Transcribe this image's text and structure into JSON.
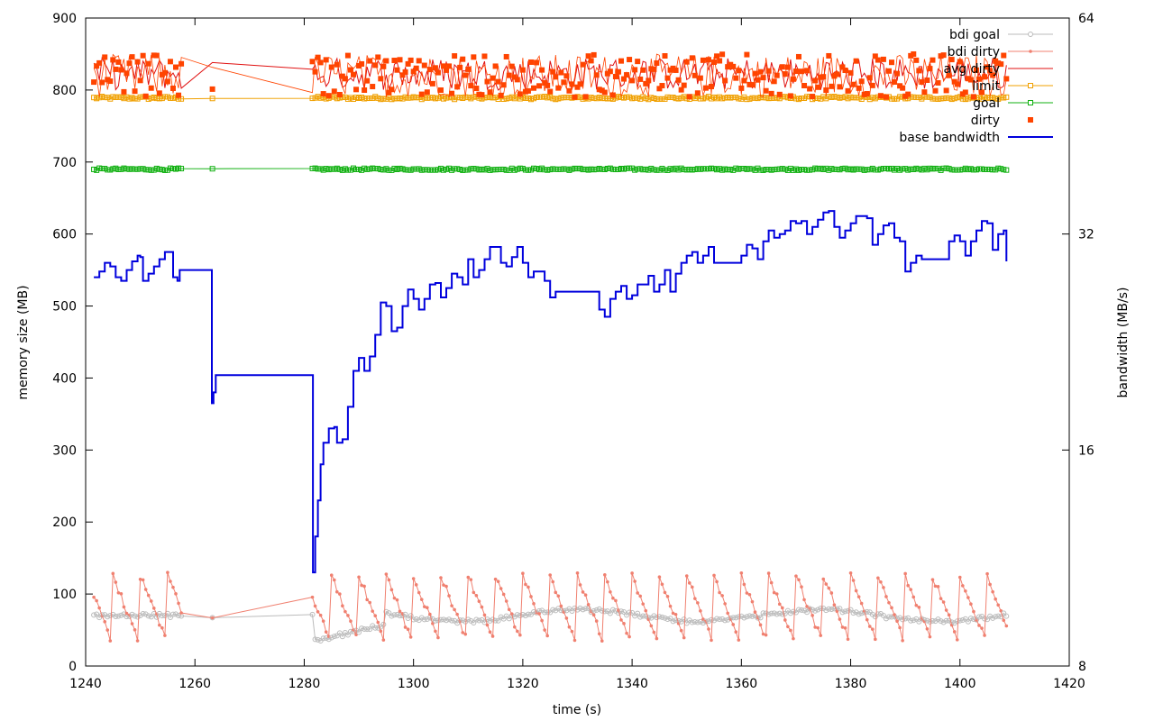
{
  "chart_data": {
    "type": "line",
    "xlabel": "time (s)",
    "ylabel_left": "memory size (MB)",
    "ylabel_right": "bandwidth (MB/s)",
    "xlim": [
      1240,
      1420
    ],
    "ylim_left": [
      0,
      900
    ],
    "ylim_right_log2": [
      8,
      64
    ],
    "x_ticks": [
      "1240",
      "1260",
      "1280",
      "1300",
      "1320",
      "1340",
      "1360",
      "1380",
      "1400",
      "1420"
    ],
    "y_ticks_left": [
      "0",
      "100",
      "200",
      "300",
      "400",
      "500",
      "600",
      "700",
      "800",
      "900"
    ],
    "y_ticks_right": [
      "8",
      "16",
      "32",
      "64"
    ],
    "grid": false,
    "legend_position": "top-right",
    "legend": [
      {
        "name": "bdi goal",
        "color": "#bbbbbb",
        "marker": "circle"
      },
      {
        "name": "bdi dirty",
        "color": "#f08070",
        "marker": "dot"
      },
      {
        "name": "avg dirty",
        "color": "#e01010",
        "marker": "none"
      },
      {
        "name": "limit",
        "color": "#f0a000",
        "marker": "square"
      },
      {
        "name": "goal",
        "color": "#10b010",
        "marker": "square"
      },
      {
        "name": "dirty",
        "color": "#ff4400",
        "marker": "filled-square"
      },
      {
        "name": "base bandwidth",
        "color": "#0000dd",
        "marker": "none"
      }
    ],
    "series": [
      {
        "name": "limit",
        "axis": "left",
        "approx_value": 789,
        "x_range": [
          1241.5,
          1408.5
        ]
      },
      {
        "name": "goal",
        "axis": "left",
        "approx_value": 690,
        "x_range": [
          1241.5,
          1408.5
        ]
      },
      {
        "name": "dirty",
        "axis": "left",
        "approx_range": [
          780,
          870
        ],
        "x_range": [
          1241.5,
          1408.5
        ]
      },
      {
        "name": "avg dirty",
        "axis": "left",
        "approx_range": [
          800,
          845
        ],
        "x_range": [
          1241.5,
          1408.5
        ]
      },
      {
        "name": "bdi goal",
        "axis": "left",
        "approx_range": [
          25,
          85
        ],
        "x_range": [
          1241.5,
          1408.5
        ]
      },
      {
        "name": "bdi dirty",
        "axis": "left",
        "approx_range": [
          20,
          130
        ],
        "x_range": [
          1241.5,
          1408.5
        ]
      },
      {
        "name": "base bandwidth",
        "axis": "right",
        "unit": "MB/s",
        "points": [
          [
            1241.5,
            540
          ],
          [
            1242.5,
            548
          ],
          [
            1243.5,
            560
          ],
          [
            1244.5,
            555
          ],
          [
            1245.5,
            540
          ],
          [
            1246.5,
            535
          ],
          [
            1247.5,
            550
          ],
          [
            1248.5,
            562
          ],
          [
            1249.5,
            570
          ],
          [
            1250,
            568
          ],
          [
            1250.5,
            535
          ],
          [
            1251.5,
            545
          ],
          [
            1252.5,
            555
          ],
          [
            1253.5,
            565
          ],
          [
            1254.5,
            575
          ],
          [
            1255.5,
            575
          ],
          [
            1256,
            540
          ],
          [
            1256.8,
            535
          ],
          [
            1257.2,
            550
          ],
          [
            1263,
            550
          ],
          [
            1263.1,
            365
          ],
          [
            1263.4,
            380
          ],
          [
            1263.8,
            404
          ],
          [
            1281.5,
            404
          ],
          [
            1281.6,
            130
          ],
          [
            1282,
            180
          ],
          [
            1282.5,
            230
          ],
          [
            1283,
            280
          ],
          [
            1283.5,
            310
          ],
          [
            1284.5,
            330
          ],
          [
            1285.5,
            332
          ],
          [
            1286,
            310
          ],
          [
            1287,
            315
          ],
          [
            1288,
            360
          ],
          [
            1289,
            410
          ],
          [
            1290,
            428
          ],
          [
            1291,
            410
          ],
          [
            1292,
            430
          ],
          [
            1293,
            460
          ],
          [
            1294,
            505
          ],
          [
            1295,
            500
          ],
          [
            1296,
            465
          ],
          [
            1297,
            470
          ],
          [
            1298,
            500
          ],
          [
            1299,
            523
          ],
          [
            1300,
            510
          ],
          [
            1301,
            495
          ],
          [
            1302,
            510
          ],
          [
            1303,
            530
          ],
          [
            1304,
            532
          ],
          [
            1305,
            512
          ],
          [
            1306,
            525
          ],
          [
            1307,
            545
          ],
          [
            1308,
            540
          ],
          [
            1309,
            530
          ],
          [
            1310,
            565
          ],
          [
            1311,
            540
          ],
          [
            1312,
            550
          ],
          [
            1313,
            565
          ],
          [
            1314,
            582
          ],
          [
            1315,
            582
          ],
          [
            1316,
            560
          ],
          [
            1317,
            555
          ],
          [
            1318,
            568
          ],
          [
            1319,
            582
          ],
          [
            1320,
            560
          ],
          [
            1321,
            540
          ],
          [
            1322,
            548
          ],
          [
            1324,
            535
          ],
          [
            1325,
            512
          ],
          [
            1326,
            520
          ],
          [
            1327,
            520
          ],
          [
            1333,
            520
          ],
          [
            1334,
            495
          ],
          [
            1335,
            485
          ],
          [
            1336,
            510
          ],
          [
            1337,
            520
          ],
          [
            1338,
            528
          ],
          [
            1339,
            510
          ],
          [
            1340,
            515
          ],
          [
            1341,
            530
          ],
          [
            1343,
            542
          ],
          [
            1344,
            520
          ],
          [
            1345,
            530
          ],
          [
            1346,
            550
          ],
          [
            1347,
            520
          ],
          [
            1348,
            545
          ],
          [
            1349,
            560
          ],
          [
            1350,
            570
          ],
          [
            1351,
            575
          ],
          [
            1352,
            560
          ],
          [
            1353,
            570
          ],
          [
            1354,
            582
          ],
          [
            1355,
            560
          ],
          [
            1359,
            560
          ],
          [
            1360,
            570
          ],
          [
            1361,
            585
          ],
          [
            1362,
            580
          ],
          [
            1363,
            565
          ],
          [
            1364,
            590
          ],
          [
            1365,
            605
          ],
          [
            1366,
            595
          ],
          [
            1367,
            600
          ],
          [
            1368,
            605
          ],
          [
            1369,
            618
          ],
          [
            1370,
            615
          ],
          [
            1371,
            618
          ],
          [
            1372,
            600
          ],
          [
            1373,
            610
          ],
          [
            1374,
            620
          ],
          [
            1375,
            630
          ],
          [
            1376,
            632
          ],
          [
            1377,
            610
          ],
          [
            1378,
            595
          ],
          [
            1379,
            605
          ],
          [
            1380,
            615
          ],
          [
            1381,
            625
          ],
          [
            1383,
            622
          ],
          [
            1384,
            585
          ],
          [
            1385,
            600
          ],
          [
            1386,
            612
          ],
          [
            1387,
            615
          ],
          [
            1388,
            595
          ],
          [
            1389,
            590
          ],
          [
            1390,
            548
          ],
          [
            1391,
            560
          ],
          [
            1392,
            570
          ],
          [
            1393,
            565
          ],
          [
            1397,
            565
          ],
          [
            1398,
            590
          ],
          [
            1399,
            598
          ],
          [
            1400,
            590
          ],
          [
            1401,
            570
          ],
          [
            1402,
            590
          ],
          [
            1403,
            605
          ],
          [
            1404,
            618
          ],
          [
            1405,
            615
          ],
          [
            1406,
            578
          ],
          [
            1407,
            600
          ],
          [
            1408,
            605
          ],
          [
            1408.5,
            562
          ]
        ]
      }
    ]
  }
}
